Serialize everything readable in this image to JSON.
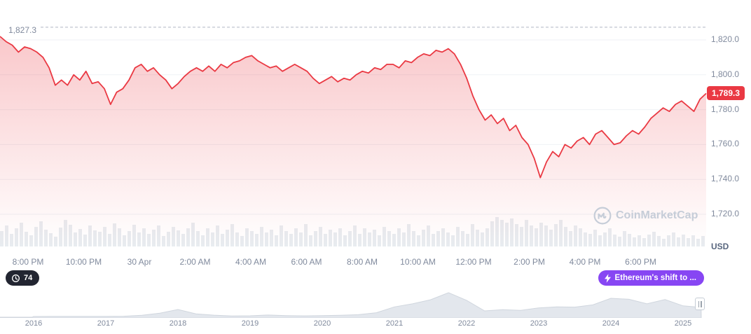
{
  "colors": {
    "line": "#ea3943",
    "fill_top": "rgba(234,57,67,0.28)",
    "fill_bottom": "rgba(234,57,67,0)",
    "grid": "#eff2f5",
    "dashed": "#b0b8c3",
    "volume": "#e8ecf0",
    "nav_fill": "#e3e7ed",
    "nav_line": "#d0d6de",
    "axis_text": "#808a9d",
    "badge_bg": "#ea3943",
    "purple": "#8746f3",
    "dark_badge": "#222531",
    "watermark": "#c6cdd8"
  },
  "chart_data": {
    "type": "line",
    "title": "",
    "unit": "USD",
    "high": 1827.3,
    "high_label": "1,827.3",
    "last": 1789.3,
    "last_label": "1,789.3",
    "ylim": [
      1715,
      1830
    ],
    "grid": true,
    "y_ticks": [
      {
        "value": 1820,
        "label": "1,820.0"
      },
      {
        "value": 1800,
        "label": "1,800.0"
      },
      {
        "value": 1780,
        "label": "1,780.0"
      },
      {
        "value": 1760,
        "label": "1,760.0"
      },
      {
        "value": 1740,
        "label": "1,740.0"
      },
      {
        "value": 1720,
        "label": "1,720.0"
      }
    ],
    "x_labels": [
      "8:00 PM",
      "10:00 PM",
      "30 Apr",
      "2:00 AM",
      "4:00 AM",
      "6:00 AM",
      "8:00 AM",
      "10:00 AM",
      "12:00 PM",
      "2:00 PM",
      "4:00 PM",
      "6:00 PM"
    ],
    "prices": [
      1822,
      1819,
      1817,
      1813,
      1816,
      1815,
      1813,
      1810,
      1804,
      1794,
      1797,
      1794,
      1800,
      1797,
      1802,
      1795,
      1796,
      1792,
      1783,
      1790,
      1792,
      1797,
      1804,
      1806,
      1802,
      1804,
      1800,
      1797,
      1792,
      1795,
      1799,
      1802,
      1804,
      1802,
      1805,
      1802,
      1806,
      1804,
      1807,
      1808,
      1810,
      1811,
      1808,
      1806,
      1804,
      1805,
      1802,
      1804,
      1806,
      1804,
      1802,
      1798,
      1795,
      1797,
      1799,
      1796,
      1798,
      1797,
      1800,
      1802,
      1801,
      1804,
      1803,
      1806,
      1806,
      1804,
      1808,
      1807,
      1810,
      1812,
      1811,
      1814,
      1813,
      1815,
      1812,
      1806,
      1798,
      1788,
      1780,
      1774,
      1777,
      1772,
      1775,
      1768,
      1771,
      1764,
      1760,
      1752,
      1741,
      1750,
      1756,
      1753,
      1760,
      1758,
      1762,
      1764,
      1760,
      1766,
      1768,
      1764,
      1760,
      1761,
      1765,
      1768,
      1766,
      1770,
      1775,
      1778,
      1781,
      1779,
      1783,
      1785,
      1782,
      1779,
      1786,
      1789.3
    ],
    "volumes": [
      22,
      30,
      18,
      26,
      34,
      21,
      16,
      28,
      36,
      24,
      19,
      14,
      27,
      38,
      31,
      20,
      25,
      17,
      30,
      23,
      21,
      28,
      18,
      33,
      26,
      16,
      22,
      31,
      20,
      26,
      18,
      24,
      30,
      15,
      21,
      28,
      23,
      18,
      26,
      34,
      22,
      16,
      26,
      20,
      30,
      18,
      24,
      32,
      20,
      15,
      26,
      22,
      18,
      28,
      20,
      24,
      16,
      30,
      22,
      18,
      26,
      20,
      32,
      16,
      22,
      28,
      18,
      24,
      20,
      26,
      16,
      22,
      30,
      18,
      26,
      20,
      24,
      16,
      28,
      22,
      18,
      26,
      20,
      32,
      22,
      16,
      24,
      30,
      18,
      22,
      26,
      20,
      16,
      28,
      22,
      18,
      32,
      24,
      20,
      26,
      36,
      42,
      38,
      34,
      40,
      32,
      28,
      38,
      30,
      26,
      34,
      30,
      24,
      32,
      38,
      28,
      22,
      30,
      26,
      20,
      18,
      24,
      16,
      20,
      26,
      17,
      14,
      22,
      18,
      13,
      16,
      12,
      17,
      21,
      15,
      11,
      16,
      20,
      13,
      17,
      12,
      16,
      11,
      15
    ],
    "navigator": {
      "years": [
        "2016",
        "2017",
        "2018",
        "2019",
        "2020",
        "2021",
        "2022",
        "2023",
        "2024",
        "2025"
      ],
      "values": [
        1,
        8,
        11,
        9,
        12,
        60,
        250,
        650,
        1380,
        520,
        260,
        110,
        140,
        290,
        180,
        130,
        170,
        230,
        360,
        740,
        1900,
        2500,
        3300,
        4700,
        3200,
        1100,
        1350,
        1200,
        1700,
        1900,
        1850,
        2300,
        3600,
        3400,
        2500,
        3350,
        2100,
        1800
      ]
    }
  },
  "watermark": {
    "text": "CoinMarketCap"
  },
  "controls": {
    "history_count": "74",
    "news_label": "Ethereum's shift to ..."
  }
}
